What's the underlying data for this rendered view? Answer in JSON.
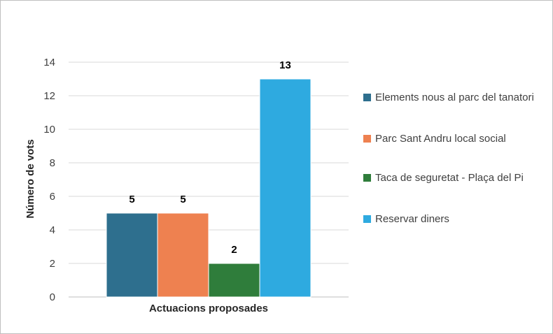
{
  "chart_data": {
    "type": "bar",
    "categories": [
      "Actuacions proposades"
    ],
    "series": [
      {
        "name": "Elements nous al parc del tanatori",
        "values": [
          5
        ],
        "color": "#2e6f8e"
      },
      {
        "name": "Parc Sant Andru local social",
        "values": [
          5
        ],
        "color": "#ee8150"
      },
      {
        "name": "Taca de seguretat - Plaça del Pi",
        "values": [
          2
        ],
        "color": "#2f7d3b"
      },
      {
        "name": "Reservar diners",
        "values": [
          13
        ],
        "color": "#2eaae0"
      }
    ],
    "data_labels": [
      "5",
      "5",
      "2",
      "13"
    ],
    "xlabel": "Actuacions proposades",
    "ylabel": "Número de vots",
    "ylim": [
      0,
      14
    ],
    "yticks": [
      "0",
      "2",
      "4",
      "6",
      "8",
      "10",
      "12",
      "14"
    ],
    "grid": true,
    "legend_position": "right"
  }
}
